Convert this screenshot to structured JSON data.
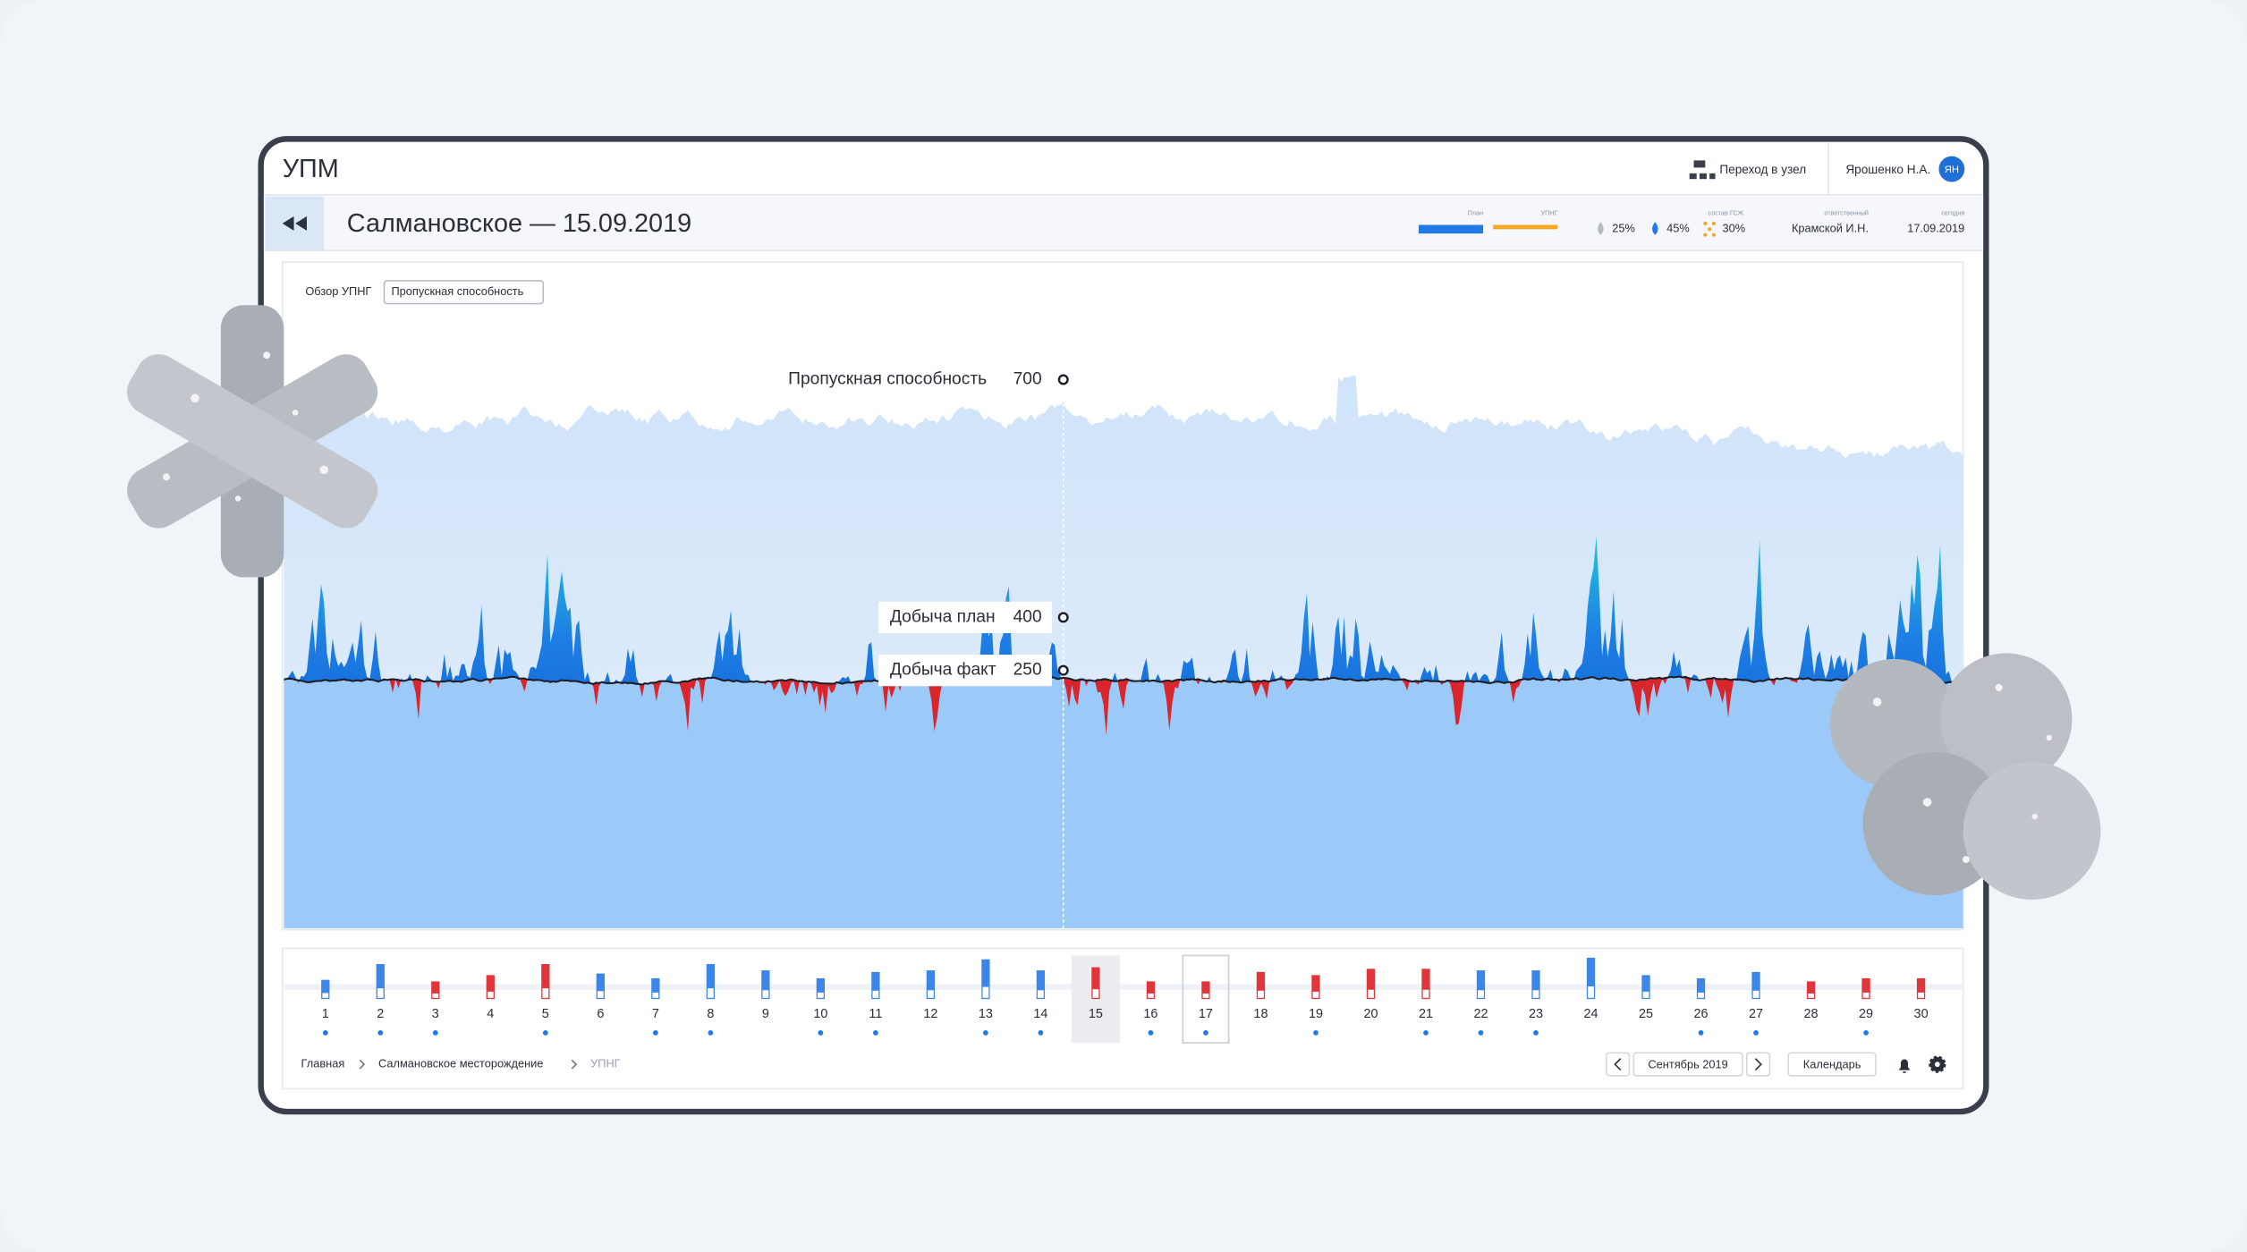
{
  "header": {
    "title": "УПМ",
    "node_link": "Переход в узел",
    "user": "Ярошенко Н.А.",
    "avatar": "ЯН"
  },
  "subheader": {
    "title": "Салмановское — 15.09.2019",
    "legend": [
      {
        "label": "План",
        "color": "#1f7ae8"
      },
      {
        "label": "УПНГ",
        "color": "#f5a623"
      }
    ],
    "indicators": [
      "25%",
      "45%",
      "30%"
    ],
    "composition_label": "состав ГСЖ",
    "responsible_label": "ответственный",
    "responsible": "Крамской И.Н.",
    "today_label": "сегодня",
    "today": "17.09.2019"
  },
  "tabs": [
    "Обзор УПНГ",
    "Пропускная способность"
  ],
  "tooltips": [
    {
      "label": "Пропускная способность",
      "value": 700
    },
    {
      "label": "Добыча план",
      "value": 400
    },
    {
      "label": "Добыча факт",
      "value": 250
    }
  ],
  "calendar": {
    "days": [
      {
        "label": 1,
        "level": 0.3,
        "color": "#3b86e8",
        "marker": true
      },
      {
        "label": 2,
        "level": 0.8,
        "color": "#3b86e8",
        "marker": true
      },
      {
        "label": 3,
        "level": 0.25,
        "color": "#e0353b",
        "marker": true
      },
      {
        "label": 4,
        "level": 0.45,
        "color": "#e0353b",
        "marker": false
      },
      {
        "label": 5,
        "level": 0.8,
        "color": "#e0353b",
        "marker": true
      },
      {
        "label": 6,
        "level": 0.5,
        "color": "#3b86e8",
        "marker": false
      },
      {
        "label": 7,
        "level": 0.35,
        "color": "#3b86e8",
        "marker": true
      },
      {
        "label": 8,
        "level": 0.8,
        "color": "#3b86e8",
        "marker": true
      },
      {
        "label": 9,
        "level": 0.6,
        "color": "#3b86e8",
        "marker": false
      },
      {
        "label": 10,
        "level": 0.35,
        "color": "#3b86e8",
        "marker": true
      },
      {
        "label": 11,
        "level": 0.55,
        "color": "#3b86e8",
        "marker": true
      },
      {
        "label": 12,
        "level": 0.6,
        "color": "#3b86e8",
        "marker": false
      },
      {
        "label": 13,
        "level": 0.95,
        "color": "#3b86e8",
        "marker": true
      },
      {
        "label": 14,
        "level": 0.6,
        "color": "#3b86e8",
        "marker": true
      },
      {
        "label": 15,
        "level": 0.7,
        "color": "#e0353b",
        "marker": false,
        "selected": true
      },
      {
        "label": 16,
        "level": 0.25,
        "color": "#e0353b",
        "marker": true
      },
      {
        "label": 17,
        "level": 0.25,
        "color": "#e0353b",
        "marker": true,
        "outlined": true
      },
      {
        "label": 18,
        "level": 0.55,
        "color": "#e0353b",
        "marker": false
      },
      {
        "label": 19,
        "level": 0.45,
        "color": "#e0353b",
        "marker": true
      },
      {
        "label": 20,
        "level": 0.65,
        "color": "#e0353b",
        "marker": false
      },
      {
        "label": 21,
        "level": 0.65,
        "color": "#e0353b",
        "marker": true
      },
      {
        "label": 22,
        "level": 0.6,
        "color": "#3b86e8",
        "marker": true
      },
      {
        "label": 23,
        "level": 0.6,
        "color": "#3b86e8",
        "marker": true
      },
      {
        "label": 24,
        "level": 1.0,
        "color": "#3b86e8",
        "marker": false
      },
      {
        "label": 25,
        "level": 0.45,
        "color": "#3b86e8",
        "marker": false
      },
      {
        "label": 26,
        "level": 0.35,
        "color": "#3b86e8",
        "marker": true
      },
      {
        "label": 27,
        "level": 0.55,
        "color": "#3b86e8",
        "marker": true
      },
      {
        "label": 28,
        "level": 0.25,
        "color": "#e0353b",
        "marker": false
      },
      {
        "label": 29,
        "level": 0.35,
        "color": "#e0353b",
        "marker": true
      },
      {
        "label": 30,
        "level": 0.35,
        "color": "#e0353b",
        "marker": false
      }
    ],
    "month": "Сентябрь 2019",
    "calendar_button": "Календарь"
  },
  "breadcrumbs": [
    "Главная",
    "Салмановское месторождение",
    "УПНГ"
  ]
}
